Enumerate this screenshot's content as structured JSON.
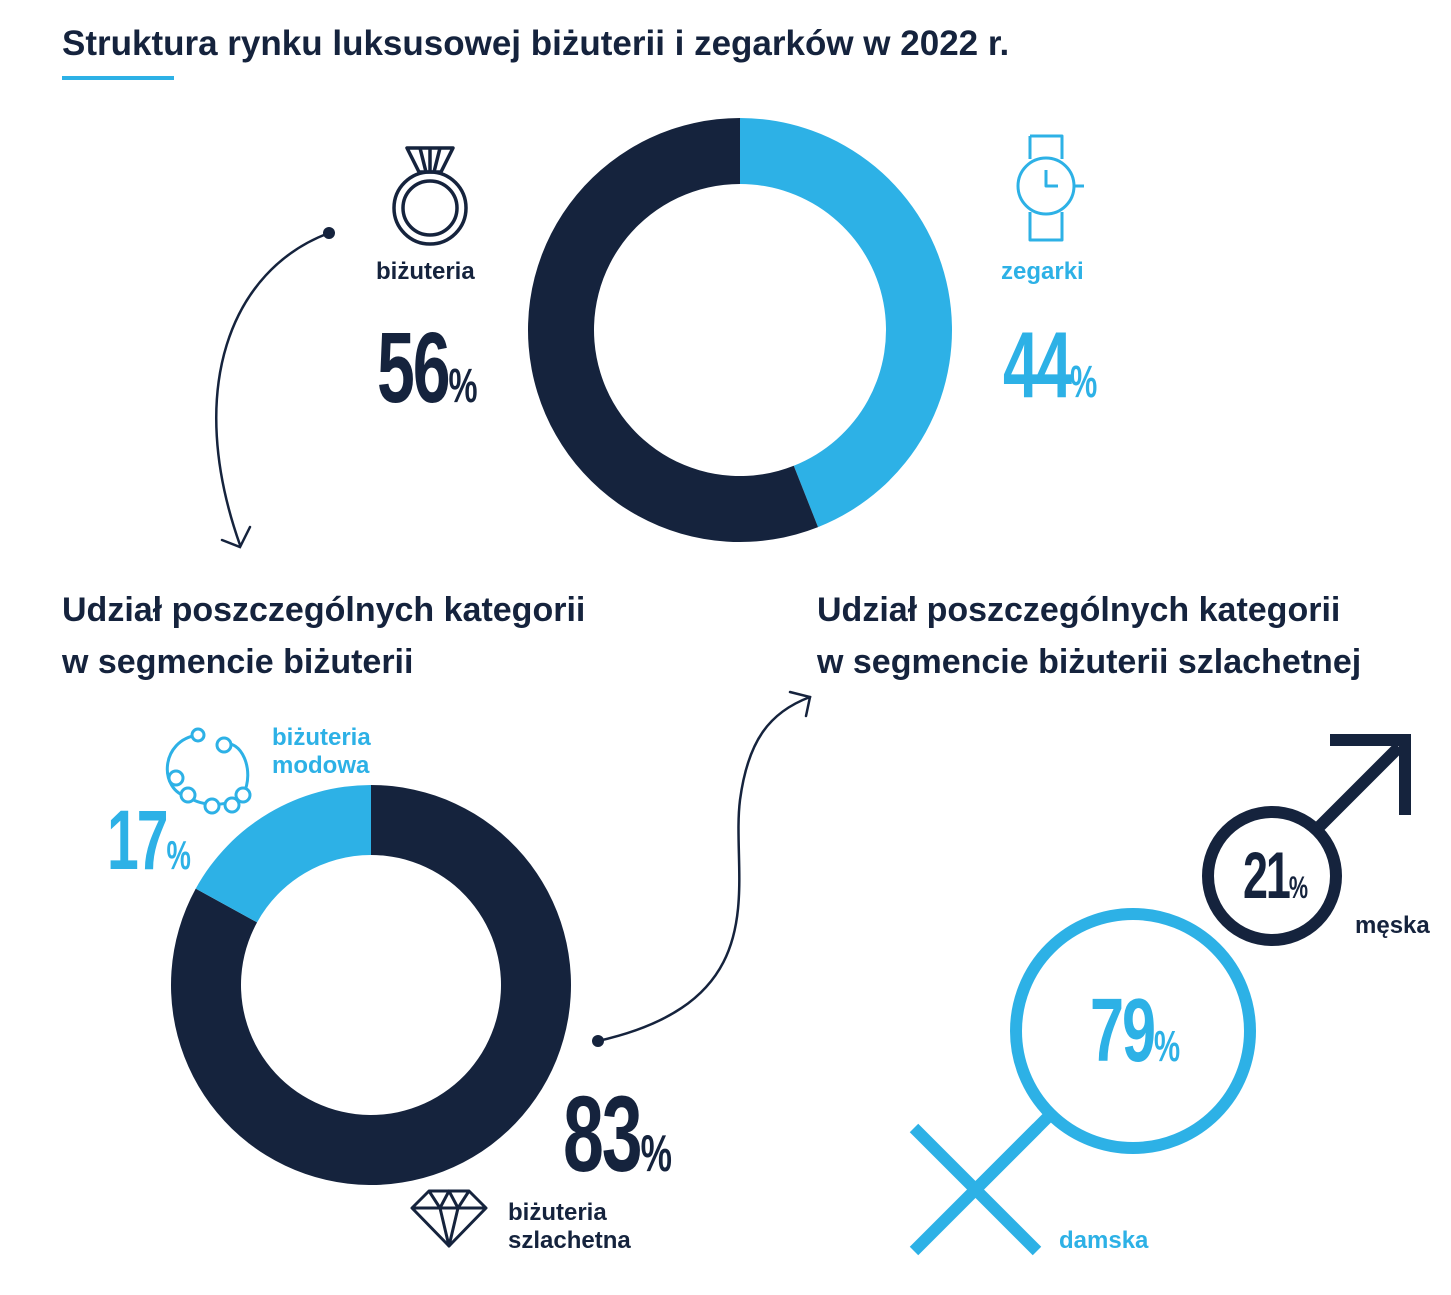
{
  "title": "Struktura rynku luksusowej biżuterii i zegarków w 2022 r.",
  "subtitle_left_1": "Udział poszczególnych kategorii",
  "subtitle_left_2": "w segmencie biżuterii",
  "subtitle_right_1": "Udział poszczególnych kategorii",
  "subtitle_right_2": "w segmencie biżuterii szlachetnej",
  "colors": {
    "dark": "#15233d",
    "light": "#2db1e6"
  },
  "icons": [
    "ring-icon",
    "watch-icon",
    "bracelet-icon",
    "diamond-icon",
    "male-symbol-icon",
    "female-symbol-icon"
  ],
  "chart_data": [
    {
      "type": "pie",
      "title": "Struktura rynku luksusowej biżuterii i zegarków w 2022 r.",
      "slices": [
        {
          "name": "biżuteria",
          "value": 56,
          "value_label": "56",
          "color": "#15233d"
        },
        {
          "name": "zegarki",
          "value": 44,
          "value_label": "44",
          "color": "#2db1e6"
        }
      ]
    },
    {
      "type": "pie",
      "title": "Udział poszczególnych kategorii w segmencie biżuterii",
      "slices": [
        {
          "name": "biżuteria szlachetna",
          "name_line1": "biżuteria",
          "name_line2": "szlachetna",
          "value": 83,
          "value_label": "83",
          "color": "#15233d"
        },
        {
          "name": "biżuteria modowa",
          "name_line1": "biżuteria",
          "name_line2": "modowa",
          "value": 17,
          "value_label": "17",
          "color": "#2db1e6"
        }
      ]
    },
    {
      "type": "pie",
      "title": "Udział poszczególnych kategorii w segmencie biżuterii szlachetnej",
      "slices": [
        {
          "name": "męska",
          "value": 21,
          "value_label": "21",
          "color": "#15233d"
        },
        {
          "name": "damska",
          "value": 79,
          "value_label": "79",
          "color": "#2db1e6"
        }
      ]
    }
  ]
}
